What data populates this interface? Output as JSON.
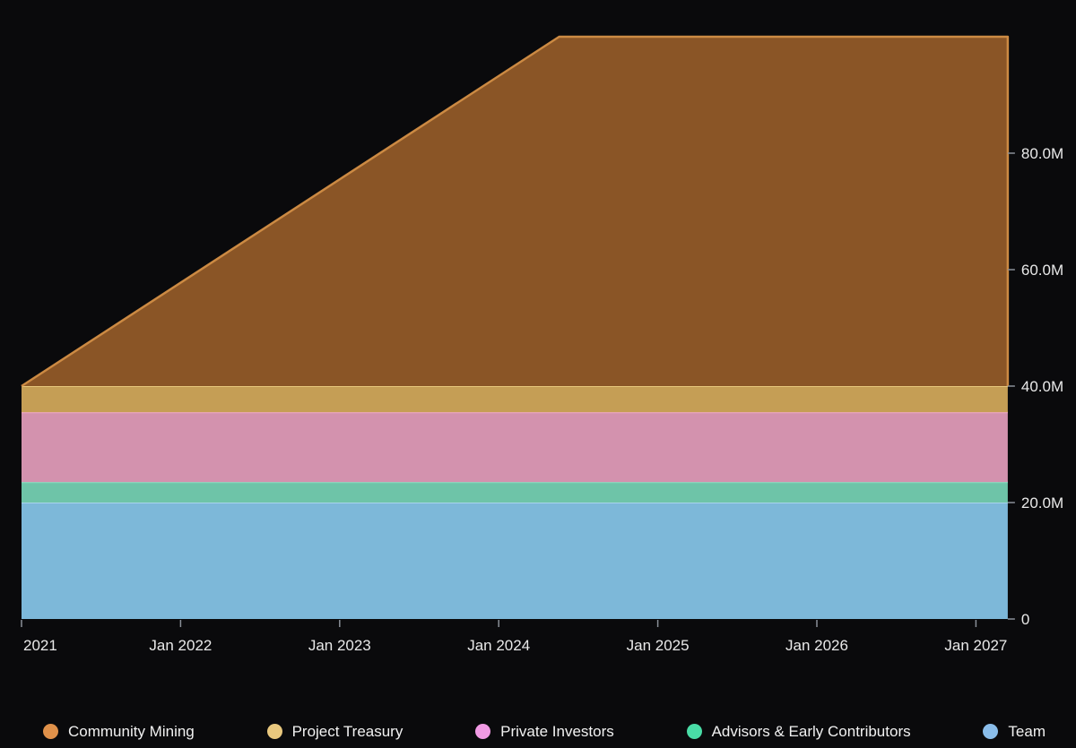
{
  "page": {
    "background": "#0a0a0c"
  },
  "chart": {
    "axis_style": {
      "text_color": "#e9e9e9",
      "tick_color": "#8a8f98"
    },
    "chart_data": {
      "type": "area",
      "stacked": true,
      "title": "",
      "xlabel": "",
      "ylabel": "",
      "x_unit": "year",
      "x_range": [
        2021.0,
        2027.2
      ],
      "ylim": [
        0,
        100
      ],
      "grid": false,
      "legend_position": "bottom",
      "y_axis_side": "right",
      "series": [
        {
          "name": "Team",
          "fill": "#7db8d9",
          "stroke": "#a9d4ec",
          "points": [
            {
              "x": 2021.0,
              "y": 20
            },
            {
              "x": 2027.2,
              "y": 20
            }
          ]
        },
        {
          "name": "Advisors & Early Contributors",
          "fill": "#6ec4a8",
          "stroke": "#7fe4c1",
          "points": [
            {
              "x": 2021.0,
              "y": 3.5
            },
            {
              "x": 2027.2,
              "y": 3.5
            }
          ]
        },
        {
          "name": "Private Investors",
          "fill": "#d392ae",
          "stroke": "#f0a9cf",
          "points": [
            {
              "x": 2021.0,
              "y": 12
            },
            {
              "x": 2027.2,
              "y": 12
            }
          ]
        },
        {
          "name": "Project Treasury",
          "fill": "#c59e55",
          "stroke": "#e7c77c",
          "points": [
            {
              "x": 2021.0,
              "y": 4.5
            },
            {
              "x": 2027.2,
              "y": 4.5
            }
          ]
        },
        {
          "name": "Community Mining",
          "fill": "#8a5526",
          "stroke": "#cc8a43",
          "edge_stroke": true,
          "points": [
            {
              "x": 2021.0,
              "y": 0
            },
            {
              "x": 2024.38,
              "y": 60
            },
            {
              "x": 2027.2,
              "y": 60
            }
          ]
        }
      ],
      "x_ticks": [
        {
          "x": 2021,
          "label": "2021"
        },
        {
          "x": 2022,
          "label": "Jan 2022"
        },
        {
          "x": 2023,
          "label": "Jan 2023"
        },
        {
          "x": 2024,
          "label": "Jan 2024"
        },
        {
          "x": 2025,
          "label": "Jan 2025"
        },
        {
          "x": 2026,
          "label": "Jan 2026"
        },
        {
          "x": 2027,
          "label": "Jan 2027"
        }
      ],
      "y_ticks": [
        {
          "value": 0,
          "label": "0"
        },
        {
          "value": 20,
          "label": "20.0M"
        },
        {
          "value": 40,
          "label": "40.0M"
        },
        {
          "value": 60,
          "label": "60.0M"
        },
        {
          "value": 80,
          "label": "80.0M"
        }
      ],
      "legend": [
        {
          "label": "Community Mining",
          "dot_color": "#e0914a"
        },
        {
          "label": "Project Treasury",
          "dot_color": "#e9c87e"
        },
        {
          "label": "Private Investors",
          "dot_color": "#f19ae4"
        },
        {
          "label": "Advisors & Early Contributors",
          "dot_color": "#49dca6"
        },
        {
          "label": "Team",
          "dot_color": "#8abdea"
        }
      ]
    }
  }
}
